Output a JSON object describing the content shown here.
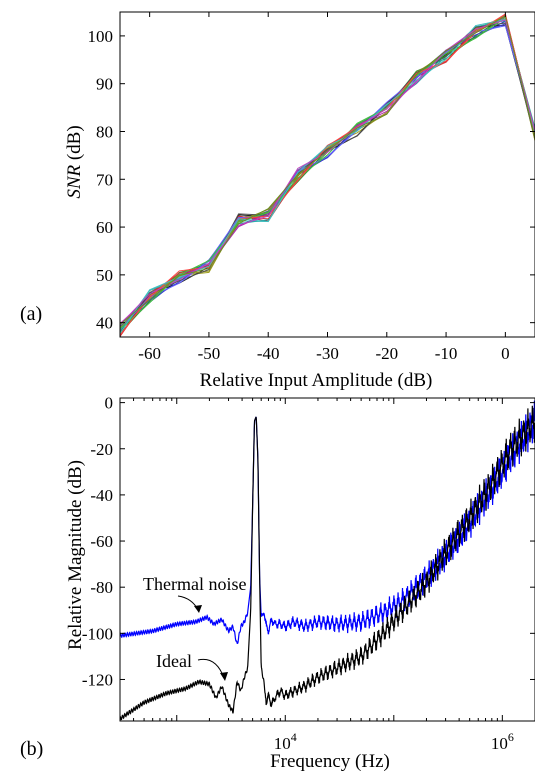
{
  "chart_data": [
    {
      "panel_label": "(a)",
      "type": "line",
      "xlabel": "Relative Input Amplitude (dB)",
      "ylabel_italic": "SNR",
      "ylabel_rest": " (dB)",
      "xlim": [
        -65,
        5
      ],
      "ylim": [
        37,
        105
      ],
      "xticks": [
        -60,
        -50,
        -40,
        -30,
        -20,
        -10,
        0
      ],
      "yticks": [
        40,
        50,
        60,
        70,
        80,
        90,
        100
      ],
      "grid": false,
      "x": [
        -65,
        -60,
        -55,
        -50,
        -45,
        -40,
        -35,
        -30,
        -25,
        -20,
        -15,
        -10,
        -5,
        0,
        5
      ],
      "y": [
        38.5,
        45.5,
        49.5,
        52,
        61.5,
        62.5,
        71,
        76,
        80.5,
        85,
        91.5,
        96,
        101,
        103.5,
        79.5
      ],
      "trace_count": 20,
      "trace_colors": [
        "#1f3fbf",
        "#2a8a2a",
        "#c02020",
        "#1aa0a0",
        "#a020a0",
        "#a0a020",
        "#202020",
        "#3a3ad0",
        "#3aa03a",
        "#d03a3a",
        "#2ab0b0",
        "#b02ab0",
        "#909020",
        "#505050",
        "#6060ff",
        "#40c040",
        "#ff4040",
        "#40c0c0",
        "#c040c0",
        "#6b8e23"
      ]
    },
    {
      "panel_label": "(b)",
      "type": "line",
      "xlabel": "Frequency (Hz)",
      "ylabel": "Relative Magnitude (dB)",
      "xscale": "log",
      "xlim": [
        300,
        2000000
      ],
      "ylim": [
        -138,
        2
      ],
      "xticks": [
        10000,
        1000000
      ],
      "xtick_base": "10",
      "xtick_exponents": [
        "4",
        "6"
      ],
      "yticks": [
        0,
        -20,
        -40,
        -60,
        -80,
        -100,
        -120
      ],
      "ytick_labels": [
        "0",
        "-20",
        "-40",
        "-60",
        "-80",
        "-100",
        "-120"
      ],
      "grid": false,
      "series": [
        {
          "name": "Thermal noise",
          "color": "#0000ff",
          "x": [
            300,
            600,
            1000,
            1500,
            1900,
            2200,
            2600,
            3000,
            3300,
            3600,
            3900,
            4200,
            4500,
            4800,
            5000,
            5200,
            5400,
            5600,
            5800,
            6000,
            6300,
            6700,
            7000,
            7500,
            8000,
            9000,
            10000,
            12000,
            15000,
            20000,
            30000,
            50000,
            80000,
            120000,
            200000,
            300000,
            500000,
            800000,
            1200000,
            2000000
          ],
          "y": [
            -101,
            -99,
            -96,
            -95,
            -93,
            -96,
            -94,
            -99,
            -97,
            -105,
            -97,
            -95,
            -91,
            -80,
            -45,
            -8,
            -6,
            -25,
            -75,
            -93,
            -91,
            -97,
            -99,
            -94,
            -96,
            -96,
            -97,
            -95,
            -97,
            -95,
            -96,
            -95,
            -91,
            -86,
            -76,
            -66,
            -52,
            -37,
            -23,
            -8
          ]
        },
        {
          "name": "Ideal",
          "color": "#000000",
          "x": [
            300,
            500,
            800,
            1200,
            1600,
            2000,
            2300,
            2600,
            3000,
            3300,
            3600,
            3900,
            4200,
            4500,
            4800,
            5000,
            5200,
            5400,
            5600,
            5800,
            6000,
            6300,
            6700,
            7000,
            7500,
            8000,
            9000,
            10000,
            12000,
            15000,
            20000,
            30000,
            50000,
            80000,
            120000,
            200000,
            300000,
            500000,
            800000,
            1200000,
            2000000
          ],
          "y": [
            -137,
            -130,
            -126,
            -124,
            -121,
            -122,
            -128,
            -123,
            -131,
            -134,
            -121,
            -125,
            -119,
            -115,
            -90,
            -45,
            -8,
            -6,
            -25,
            -75,
            -115,
            -120,
            -130,
            -127,
            -131,
            -128,
            -125,
            -127,
            -125,
            -123,
            -119,
            -115,
            -110,
            -100,
            -90,
            -78,
            -65,
            -50,
            -35,
            -20,
            -8
          ]
        }
      ],
      "annotations": [
        {
          "text": "Thermal noise",
          "x": 1600,
          "y": -92
        },
        {
          "text": "Ideal",
          "x": 2200,
          "y": -118
        }
      ]
    }
  ]
}
